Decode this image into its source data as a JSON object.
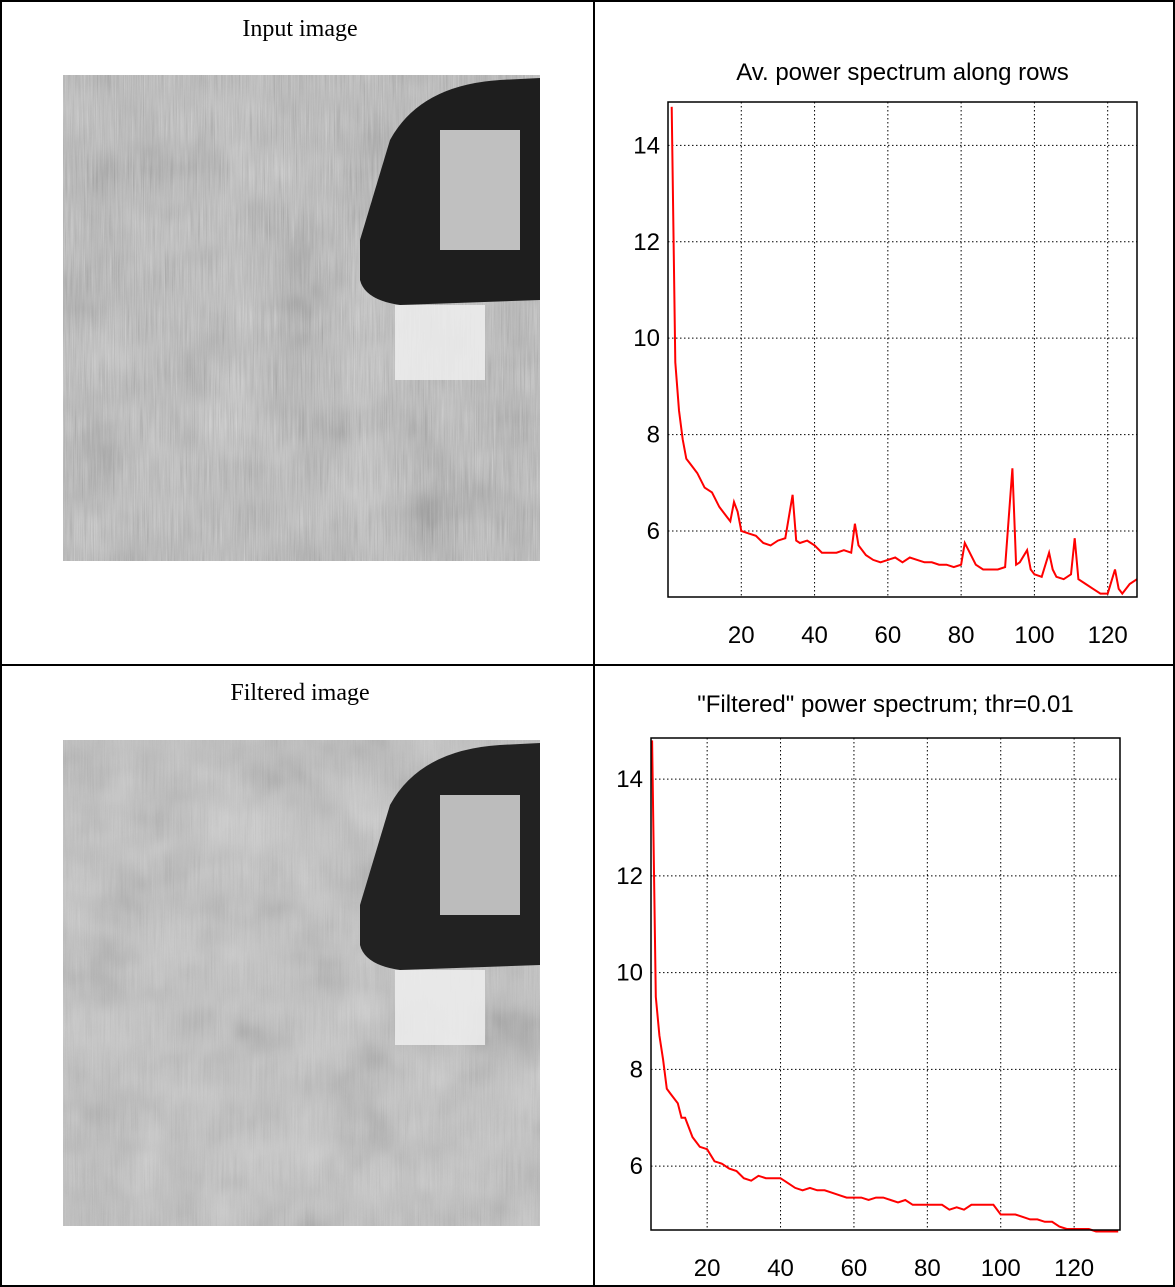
{
  "image_captions": [
    "Input image",
    "Filtered image"
  ],
  "chart_data": [
    {
      "type": "line",
      "title": "Av. power spectrum along rows",
      "color": "#ff0000",
      "grid": true,
      "xlim": [
        0,
        128
      ],
      "ylim": [
        4.63,
        14.9
      ],
      "xticks": [
        20,
        40,
        60,
        80,
        100,
        120
      ],
      "yticks": [
        6,
        8,
        10,
        12,
        14
      ],
      "x": [
        1,
        2,
        3,
        4,
        5,
        6,
        8,
        10,
        12,
        14,
        16,
        17,
        18,
        19,
        20,
        22,
        24,
        26,
        28,
        30,
        32,
        34,
        35,
        36,
        38,
        40,
        42,
        44,
        46,
        48,
        50,
        51,
        52,
        54,
        56,
        58,
        60,
        62,
        64,
        66,
        68,
        70,
        72,
        74,
        76,
        78,
        80,
        81,
        82,
        84,
        86,
        88,
        90,
        92,
        94,
        95,
        96,
        98,
        99,
        100,
        102,
        104,
        105,
        106,
        108,
        110,
        111,
        112,
        114,
        116,
        118,
        120,
        122,
        123,
        124,
        126,
        128
      ],
      "values": [
        14.8,
        9.5,
        8.5,
        7.9,
        7.5,
        7.4,
        7.2,
        6.9,
        6.8,
        6.5,
        6.3,
        6.2,
        6.6,
        6.4,
        6.0,
        5.95,
        5.9,
        5.75,
        5.7,
        5.8,
        5.85,
        6.75,
        5.8,
        5.75,
        5.8,
        5.7,
        5.55,
        5.55,
        5.55,
        5.6,
        5.55,
        6.15,
        5.7,
        5.5,
        5.4,
        5.35,
        5.4,
        5.45,
        5.35,
        5.45,
        5.4,
        5.35,
        5.35,
        5.3,
        5.3,
        5.25,
        5.3,
        5.75,
        5.6,
        5.3,
        5.2,
        5.2,
        5.2,
        5.25,
        7.3,
        5.3,
        5.35,
        5.6,
        5.2,
        5.1,
        5.05,
        5.55,
        5.2,
        5.05,
        5.0,
        5.1,
        5.85,
        5.0,
        4.9,
        4.8,
        4.7,
        4.7,
        5.2,
        4.8,
        4.7,
        4.9,
        5.0
      ]
    },
    {
      "type": "line",
      "title": "\"Filtered\" power spectrum; thr=0.01",
      "color": "#ff0000",
      "grid": true,
      "xlim": [
        4.7,
        132.5
      ],
      "ylim": [
        4.68,
        14.85
      ],
      "xticks": [
        20,
        40,
        60,
        80,
        100,
        120
      ],
      "yticks": [
        6,
        8,
        10,
        12,
        14
      ],
      "x": [
        5,
        6,
        7,
        8,
        9,
        10,
        12,
        13,
        14,
        16,
        18,
        20,
        22,
        24,
        26,
        28,
        30,
        32,
        34,
        36,
        38,
        40,
        42,
        44,
        46,
        48,
        50,
        52,
        54,
        56,
        58,
        60,
        62,
        64,
        66,
        68,
        70,
        72,
        74,
        76,
        78,
        80,
        82,
        84,
        86,
        88,
        90,
        92,
        94,
        96,
        98,
        100,
        102,
        104,
        106,
        108,
        110,
        112,
        114,
        116,
        118,
        120,
        122,
        124,
        126,
        128,
        132
      ],
      "values": [
        14.8,
        9.5,
        8.7,
        8.2,
        7.6,
        7.5,
        7.3,
        7.0,
        7.0,
        6.6,
        6.4,
        6.35,
        6.1,
        6.05,
        5.95,
        5.9,
        5.75,
        5.7,
        5.8,
        5.75,
        5.75,
        5.75,
        5.65,
        5.55,
        5.5,
        5.55,
        5.5,
        5.5,
        5.45,
        5.4,
        5.35,
        5.35,
        5.35,
        5.3,
        5.35,
        5.35,
        5.3,
        5.25,
        5.3,
        5.2,
        5.2,
        5.2,
        5.2,
        5.2,
        5.1,
        5.15,
        5.1,
        5.2,
        5.2,
        5.2,
        5.2,
        5.0,
        5.0,
        5.0,
        4.95,
        4.9,
        4.9,
        4.85,
        4.85,
        4.75,
        4.7,
        4.7,
        4.7,
        4.7,
        4.65,
        4.65,
        4.65
      ]
    }
  ]
}
